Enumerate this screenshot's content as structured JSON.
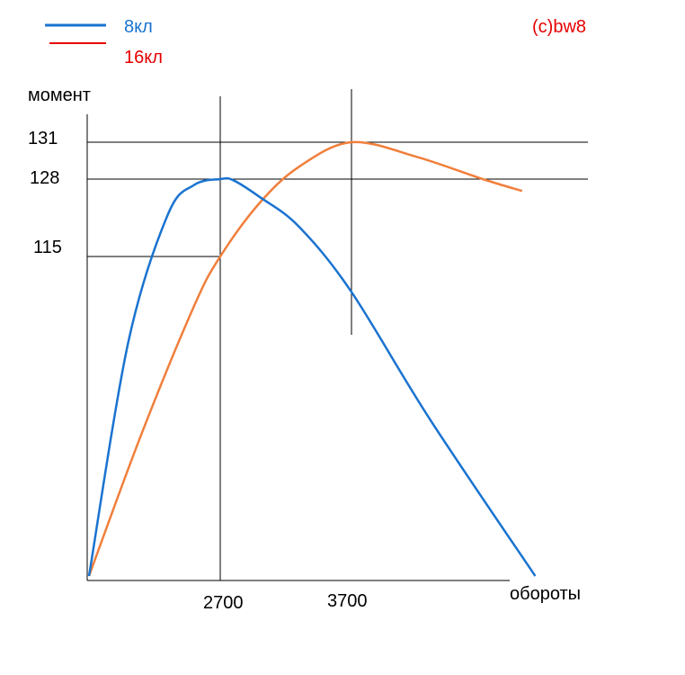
{
  "watermark": "(c)bw8",
  "colors": {
    "series_8": "#1a73d0",
    "series_16_legend": "#e60000",
    "series_16_line": "#f07f3c",
    "watermark": "#e60000",
    "axes": "#000000"
  },
  "chart_data": {
    "type": "line",
    "ylabel": "момент",
    "xlabel": "обороты",
    "x_ticks": [
      "2700",
      "3700"
    ],
    "y_ticks": [
      "131",
      "128",
      "115"
    ],
    "series": [
      {
        "name": "8кл",
        "x": [
          1700,
          2000,
          2300,
          2500,
          2700,
          2800,
          3000,
          3300,
          3700,
          4300,
          5100
        ],
        "y": [
          70,
          103,
          122,
          127,
          128,
          127.8,
          125,
          120,
          110,
          92,
          70
        ]
      },
      {
        "name": "16кл",
        "x": [
          1700,
          2100,
          2500,
          2700,
          3000,
          3300,
          3700,
          4200,
          4700,
          5000
        ],
        "y": [
          70,
          90,
          108,
          115,
          124,
          129,
          131,
          129.8,
          128,
          126
        ]
      }
    ]
  }
}
